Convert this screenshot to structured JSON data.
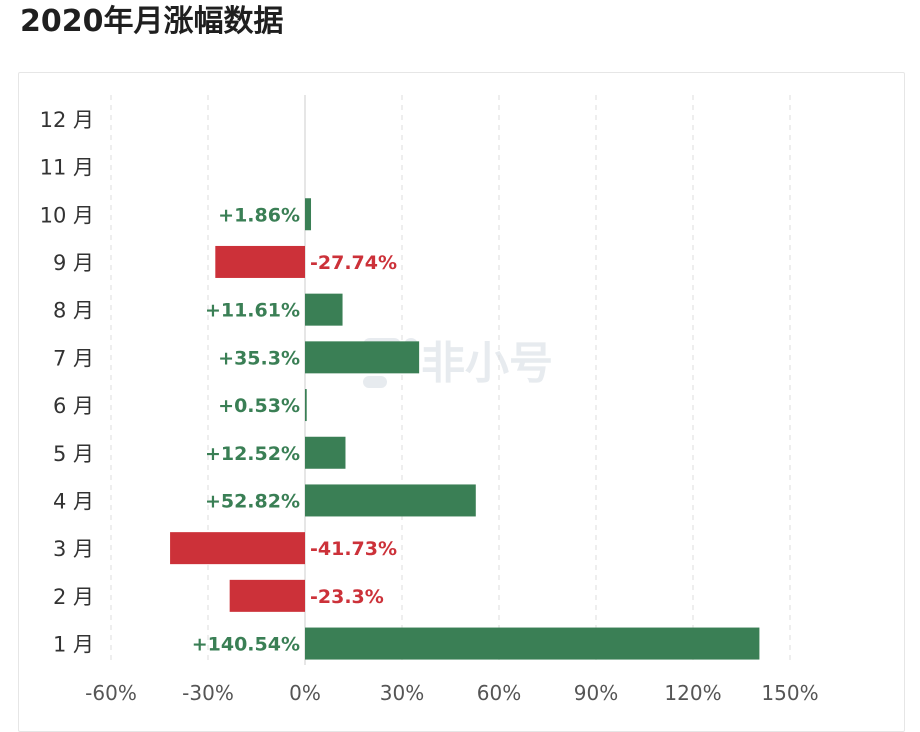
{
  "page": {
    "title": "2020年月涨幅数据"
  },
  "watermark": {
    "text": "非小号",
    "icon": "feixiaohao-logo-icon"
  },
  "colors": {
    "positive": "#3a7f55",
    "negative": "#cc3139",
    "grid": "#dddddd",
    "axis": "#cccccc"
  },
  "chart_data": {
    "type": "bar",
    "orientation": "horizontal",
    "title": "2020年月涨幅数据",
    "categories": [
      "1 月",
      "2 月",
      "3 月",
      "4 月",
      "5 月",
      "6 月",
      "7 月",
      "8 月",
      "9 月",
      "10 月",
      "11 月",
      "12 月"
    ],
    "values": [
      140.54,
      -23.3,
      -41.73,
      52.82,
      12.52,
      0.53,
      35.3,
      11.61,
      -27.74,
      1.86,
      null,
      null
    ],
    "value_labels": [
      "+140.54%",
      "-23.3%",
      "-41.73%",
      "+52.82%",
      "+12.52%",
      "+0.53%",
      "+35.3%",
      "+11.61%",
      "-27.74%",
      "+1.86%",
      "",
      ""
    ],
    "x_ticks": [
      -60,
      -30,
      0,
      30,
      60,
      90,
      120,
      150
    ],
    "x_tick_labels": [
      "-60%",
      "-30%",
      "0%",
      "30%",
      "60%",
      "90%",
      "120%",
      "150%"
    ],
    "xlim": [
      -60,
      150
    ],
    "xlabel": "",
    "ylabel": "",
    "grid": true,
    "grid_style": "dashed-vertical",
    "legend": "none"
  }
}
